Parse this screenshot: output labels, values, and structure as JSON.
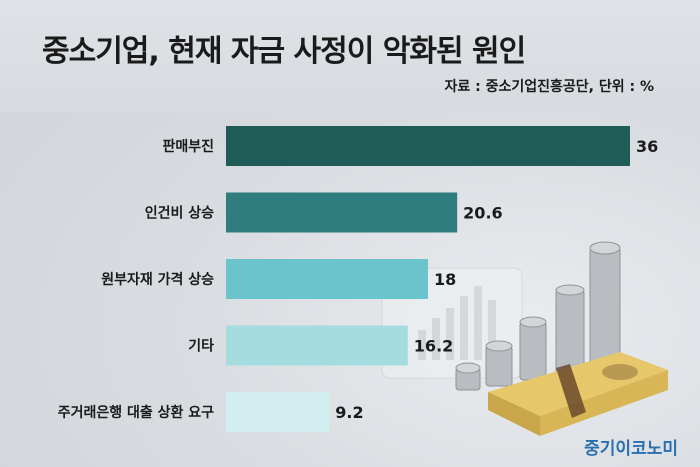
{
  "title": "중소기업, 현재 자금 사정이 악화된 원인",
  "source": "자료 : 중소기업진흥공단, 단위 : %",
  "brand": "중기이코노미",
  "chart_data": {
    "type": "bar",
    "orientation": "horizontal",
    "title": "중소기업, 현재 자금 사정이 악화된 원인",
    "categories": [
      "판매부진",
      "인건비 상승",
      "원부자재 가격 상승",
      "기타",
      "주거래은행 대출 상환 요구"
    ],
    "values": [
      36,
      20.6,
      18,
      16.2,
      9.2
    ],
    "value_labels": [
      "36",
      "20.6",
      "18",
      "16.2",
      "9.2"
    ],
    "bar_colors": [
      "#1f5c57",
      "#2f7d7f",
      "#6bc3cc",
      "#a5dce0",
      "#d3eef0"
    ],
    "xlim": [
      0,
      36
    ],
    "grid": false,
    "legend": "none"
  }
}
